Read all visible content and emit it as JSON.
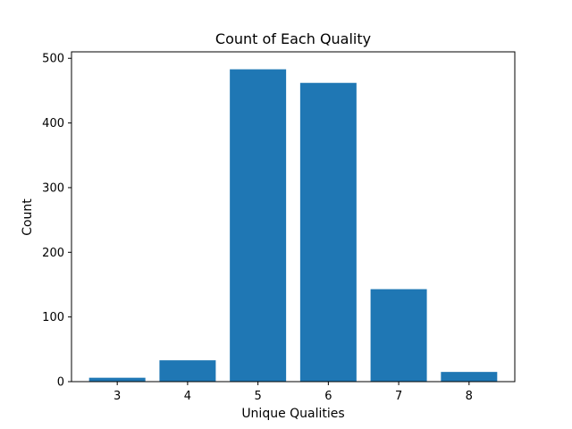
{
  "chart_data": {
    "type": "bar",
    "title": "Count of Each Quality",
    "xlabel": "Unique Qualities",
    "ylabel": "Count",
    "categories": [
      "3",
      "4",
      "5",
      "6",
      "7",
      "8"
    ],
    "values": [
      6,
      33,
      483,
      462,
      143,
      15
    ],
    "ylim": [
      0,
      510
    ],
    "yticks": [
      0,
      100,
      200,
      300,
      400,
      500
    ],
    "bar_color": "#1f77b4",
    "grid": false,
    "legend": "none"
  }
}
